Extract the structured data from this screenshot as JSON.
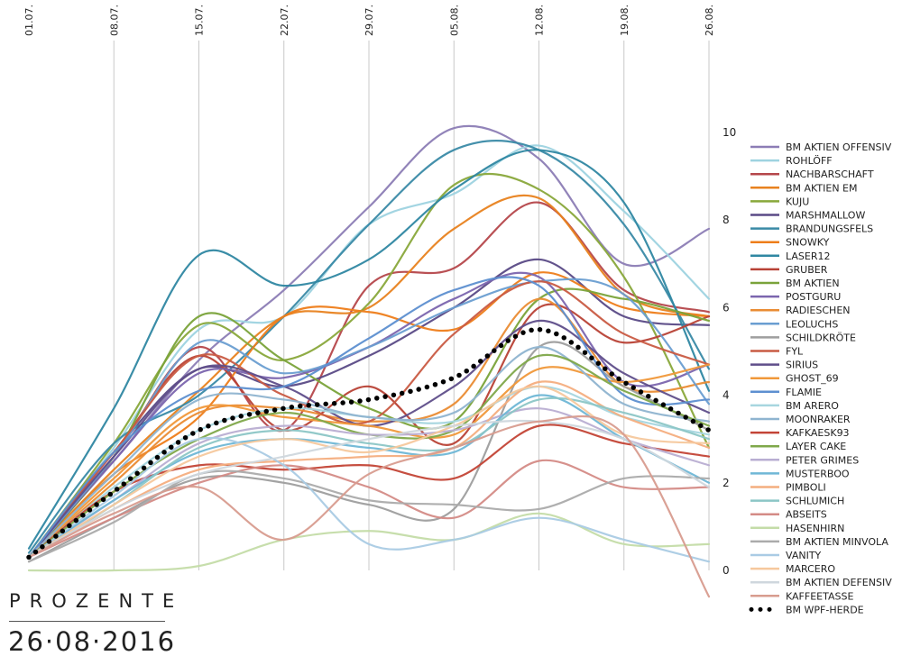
{
  "unit_label": "PROZENTE",
  "date_stamp": "26·08·2016",
  "chart_data": {
    "type": "line",
    "x": [
      "01.07.",
      "08.07.",
      "15.07.",
      "22.07.",
      "29.07.",
      "05.08.",
      "12.08.",
      "19.08.",
      "26.08."
    ],
    "ylim": [
      0,
      10
    ],
    "y_ticks": [
      0,
      2,
      4,
      6,
      8,
      10
    ],
    "grid": true,
    "legend_position": "right",
    "series": [
      {
        "name": "BM AKTIEN OFFENSIV",
        "color": "#8c7db5",
        "values": [
          0.3,
          2.5,
          4.8,
          6.4,
          8.3,
          10.1,
          9.4,
          7.0,
          7.8
        ]
      },
      {
        "name": "ROHLÖFF",
        "color": "#9ed3e0",
        "values": [
          0.3,
          2.8,
          5.5,
          5.8,
          7.9,
          8.6,
          9.7,
          8.2,
          6.2
        ]
      },
      {
        "name": "NACHBARSCHAFT",
        "color": "#b5474b",
        "values": [
          0.3,
          2.6,
          5.1,
          3.2,
          6.5,
          6.9,
          8.4,
          6.4,
          5.9
        ]
      },
      {
        "name": "BM AKTIEN EM",
        "color": "#e8821f",
        "values": [
          0.3,
          2.3,
          4.1,
          5.8,
          6.0,
          7.8,
          8.5,
          6.3,
          5.8
        ]
      },
      {
        "name": "KUJU",
        "color": "#89a83b",
        "values": [
          0.3,
          2.9,
          5.6,
          4.8,
          6.1,
          8.8,
          8.7,
          6.7,
          2.8
        ]
      },
      {
        "name": "MARSHMALLOW",
        "color": "#5a4a86",
        "values": [
          0.3,
          2.7,
          4.6,
          4.2,
          4.9,
          6.0,
          7.1,
          5.8,
          5.6
        ]
      },
      {
        "name": "BRANDUNGSFELS",
        "color": "#3a8aa6",
        "values": [
          0.4,
          2.9,
          4.0,
          5.8,
          7.9,
          9.6,
          9.6,
          7.9,
          4.6
        ]
      },
      {
        "name": "SNOWKY",
        "color": "#ee7d1a",
        "values": [
          0.3,
          2.2,
          3.5,
          5.8,
          5.9,
          5.5,
          6.8,
          6.0,
          5.8
        ]
      },
      {
        "name": "LASER12",
        "color": "#2f87a2",
        "values": [
          0.5,
          3.7,
          7.2,
          6.5,
          7.1,
          8.7,
          9.6,
          8.4,
          4.1
        ]
      },
      {
        "name": "GRUBER",
        "color": "#b84236",
        "values": [
          0.3,
          2.7,
          4.9,
          3.2,
          4.2,
          2.9,
          6.0,
          5.2,
          5.8
        ]
      },
      {
        "name": "BM AKTIEN",
        "color": "#7aa33a",
        "values": [
          0.3,
          2.6,
          5.8,
          4.8,
          3.7,
          3.4,
          6.2,
          6.2,
          5.7
        ]
      },
      {
        "name": "POSTGURU",
        "color": "#7b65ae",
        "values": [
          0.3,
          2.5,
          4.5,
          4.4,
          5.1,
          6.2,
          6.7,
          4.3,
          4.7
        ]
      },
      {
        "name": "RADIESCHEN",
        "color": "#ea8c34",
        "values": [
          0.3,
          2.0,
          3.6,
          3.7,
          3.4,
          3.8,
          6.2,
          4.2,
          4.3
        ]
      },
      {
        "name": "LEOLUCHS",
        "color": "#6a9ed1",
        "values": [
          0.3,
          2.6,
          5.2,
          4.5,
          5.1,
          6.0,
          6.6,
          6.3,
          3.8
        ]
      },
      {
        "name": "SCHILDKRÖTE",
        "color": "#9e9e9e",
        "values": [
          0.2,
          1.2,
          2.1,
          2.0,
          1.5,
          1.4,
          5.1,
          4.2,
          3.2
        ]
      },
      {
        "name": "FYL",
        "color": "#c95b43",
        "values": [
          0.3,
          2.7,
          4.9,
          4.0,
          3.4,
          5.4,
          6.6,
          5.4,
          4.7
        ]
      },
      {
        "name": "SIRIUS",
        "color": "#5f4e8a",
        "values": [
          0.3,
          2.6,
          4.6,
          4.2,
          3.3,
          4.2,
          5.7,
          4.5,
          3.6
        ]
      },
      {
        "name": "GHOST_69",
        "color": "#f0983a",
        "values": [
          0.3,
          2.1,
          3.7,
          3.5,
          3.3,
          3.1,
          4.6,
          4.3,
          4.7
        ]
      },
      {
        "name": "FLAMIE",
        "color": "#5d8fd0",
        "values": [
          0.3,
          2.7,
          4.1,
          4.2,
          5.3,
          6.4,
          6.5,
          4.0,
          3.9
        ]
      },
      {
        "name": "BM ARERO",
        "color": "#a7d6df",
        "values": [
          0.3,
          1.9,
          3.2,
          3.7,
          3.5,
          3.4,
          4.2,
          3.5,
          3.1
        ]
      },
      {
        "name": "MOONRAKER",
        "color": "#8fb4d0",
        "values": [
          0.3,
          2.2,
          3.9,
          3.9,
          3.5,
          3.6,
          5.1,
          3.8,
          3.4
        ]
      },
      {
        "name": "KAFKAESK93",
        "color": "#c34436",
        "values": [
          0.3,
          1.8,
          2.4,
          2.3,
          2.4,
          2.1,
          3.3,
          2.9,
          2.6
        ]
      },
      {
        "name": "LAYER CAKE",
        "color": "#7fa84a",
        "values": [
          0.3,
          1.8,
          3.0,
          3.6,
          3.1,
          3.2,
          4.9,
          4.1,
          3.3
        ]
      },
      {
        "name": "PETER GRIMES",
        "color": "#b9aed2",
        "values": [
          0.3,
          1.6,
          2.9,
          3.3,
          3.1,
          3.2,
          3.7,
          3.0,
          2.4
        ]
      },
      {
        "name": "MUSTERBOO",
        "color": "#6fb7d6",
        "values": [
          0.3,
          1.6,
          2.7,
          3.0,
          2.8,
          2.7,
          4.0,
          3.0,
          2.0
        ]
      },
      {
        "name": "PIMBOLI",
        "color": "#f4ae7f",
        "values": [
          0.3,
          1.4,
          2.3,
          2.5,
          2.6,
          2.8,
          4.3,
          3.5,
          2.8
        ]
      },
      {
        "name": "SCHLUMICH",
        "color": "#8cc6c6",
        "values": [
          0.3,
          1.5,
          2.8,
          3.2,
          2.9,
          2.8,
          3.9,
          3.6,
          3.0
        ]
      },
      {
        "name": "ABSEITS",
        "color": "#d48b86",
        "values": [
          0.3,
          1.2,
          2.0,
          2.4,
          1.9,
          1.2,
          2.5,
          1.9,
          1.9
        ]
      },
      {
        "name": "HASENHIRN",
        "color": "#c4dca8",
        "values": [
          0.0,
          0.0,
          0.1,
          0.7,
          0.9,
          0.7,
          1.3,
          0.6,
          0.6
        ]
      },
      {
        "name": "BM AKTIEN MINVOLA",
        "color": "#ababab",
        "values": [
          0.2,
          1.1,
          2.2,
          2.1,
          1.6,
          1.5,
          1.4,
          2.1,
          2.1
        ]
      },
      {
        "name": "VANITY",
        "color": "#aacbe4",
        "values": [
          0.3,
          1.7,
          3.0,
          2.4,
          0.6,
          0.7,
          1.2,
          0.7,
          0.2
        ]
      },
      {
        "name": "MARCERO",
        "color": "#f6c89d",
        "values": [
          0.3,
          1.5,
          2.6,
          3.0,
          2.7,
          3.3,
          4.2,
          3.1,
          2.9
        ]
      },
      {
        "name": "BM AKTIEN DEFENSIV",
        "color": "#cfd7dd",
        "values": [
          0.3,
          1.4,
          2.2,
          2.6,
          3.0,
          3.3,
          3.4,
          3.0,
          1.9
        ]
      },
      {
        "name": "KAFFEETASSE",
        "color": "#d89c8f",
        "values": [
          0.3,
          1.3,
          1.9,
          0.7,
          2.2,
          2.8,
          3.4,
          3.1,
          -0.6
        ]
      },
      {
        "name": "BM WPF-HERDE",
        "color": "#000000",
        "dotted": true,
        "values": [
          0.3,
          1.8,
          3.2,
          3.7,
          3.9,
          4.4,
          5.5,
          4.3,
          3.2
        ]
      }
    ]
  }
}
